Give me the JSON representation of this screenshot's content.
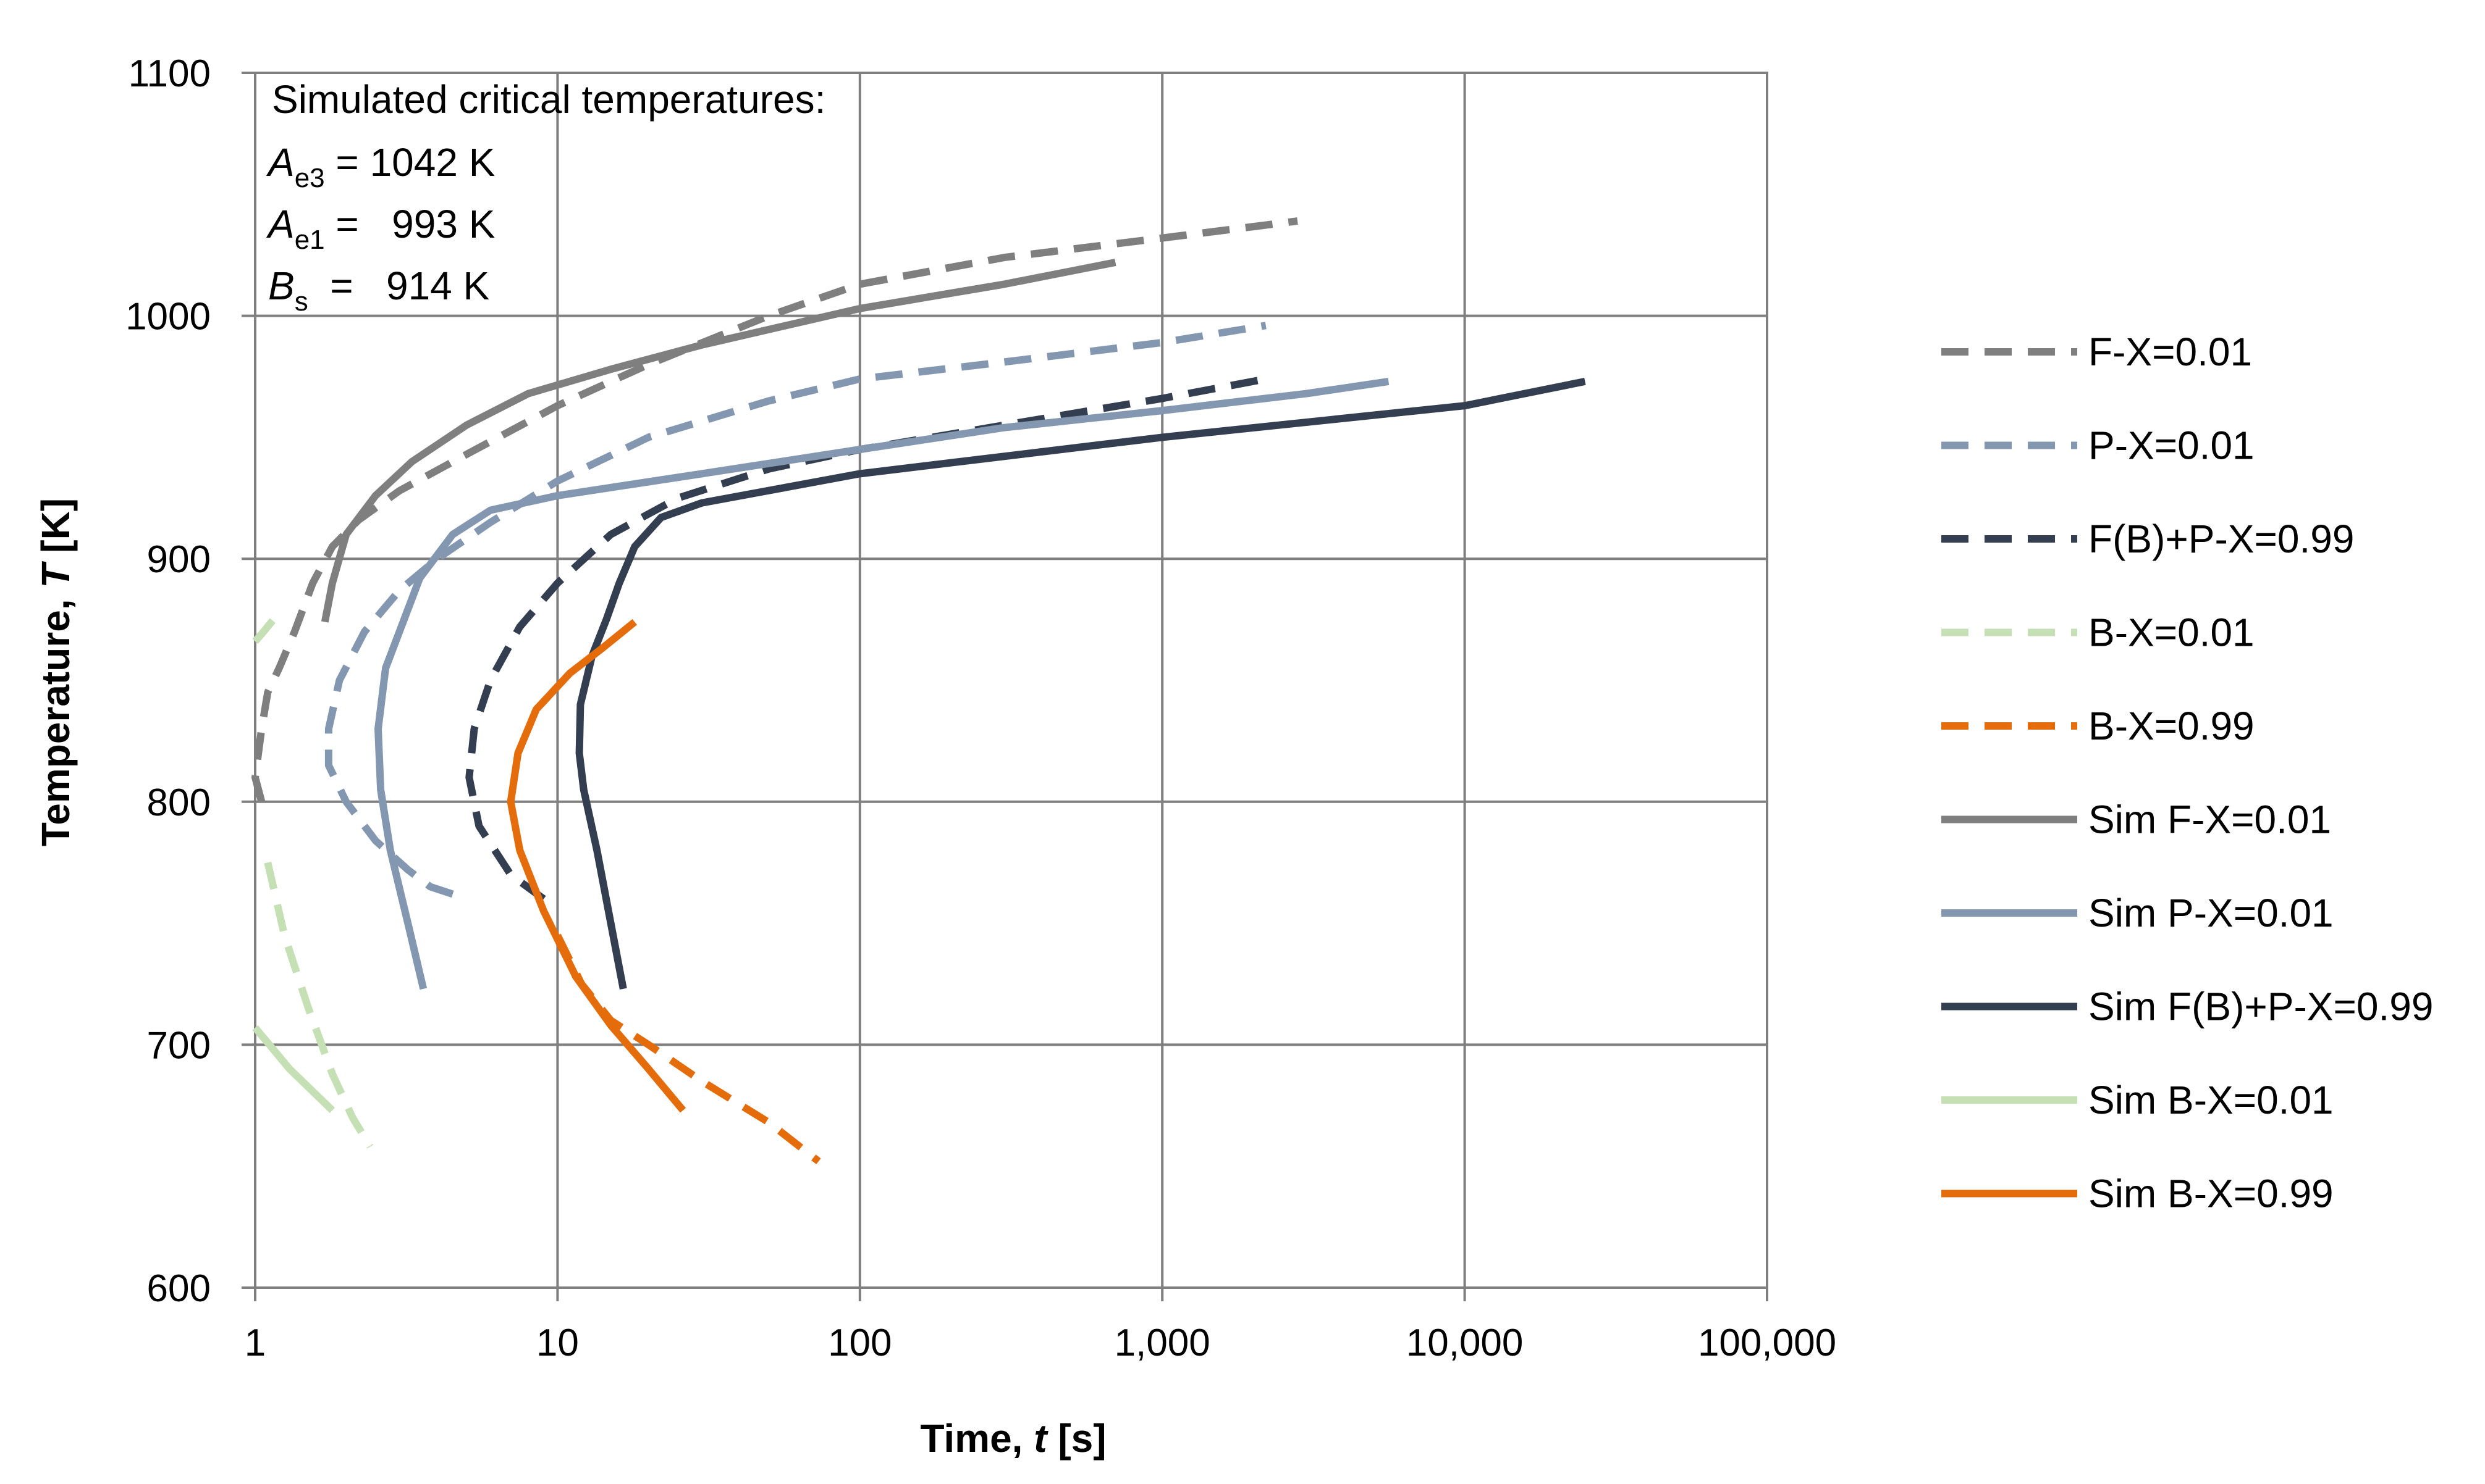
{
  "chart_data": {
    "type": "line",
    "title": "",
    "xlabel": "Time, t [s]",
    "xlabel_parts": [
      "Time, ",
      "t",
      " [s]"
    ],
    "ylabel": "Temperature, T [K]",
    "ylabel_parts": [
      "Temperature, ",
      "T",
      " [K]"
    ],
    "xscale": "log",
    "xlim": [
      1,
      100000
    ],
    "ylim": [
      600,
      1100
    ],
    "xticks": [
      1,
      10,
      100,
      1000,
      10000,
      100000
    ],
    "xtick_labels": [
      "1",
      "10",
      "100",
      "1,000",
      "10,000",
      "100,000"
    ],
    "yticks": [
      600,
      700,
      800,
      900,
      1000,
      1100
    ],
    "ytick_labels": [
      "600",
      "700",
      "800",
      "900",
      "1000",
      "1100"
    ],
    "grid": true,
    "legend_position": "right",
    "annotation": {
      "title": "Simulated critical temperatures:",
      "lines": [
        {
          "symbol": "A",
          "sub": "e3",
          "text": " = 1042 K"
        },
        {
          "symbol": "A",
          "sub": "e1",
          "text": " =   993 K"
        },
        {
          "symbol": "B",
          "sub": "s",
          "text": "  =   914 K"
        }
      ]
    },
    "series": [
      {
        "name": "F-X=0.01",
        "color": "#7f7f7f",
        "dashed": true,
        "points": [
          [
            1.05,
            800
          ],
          [
            1.0,
            810
          ],
          [
            1.05,
            830
          ],
          [
            1.1,
            845
          ],
          [
            1.2,
            855
          ],
          [
            1.35,
            870
          ],
          [
            1.55,
            890
          ],
          [
            1.8,
            905
          ],
          [
            2.2,
            916
          ],
          [
            3,
            928
          ],
          [
            5,
            943
          ],
          [
            10,
            963
          ],
          [
            20,
            980
          ],
          [
            50,
            1000
          ],
          [
            100,
            1013
          ],
          [
            300,
            1024
          ],
          [
            1000,
            1032
          ],
          [
            2800,
            1039
          ]
        ]
      },
      {
        "name": "P-X=0.01",
        "color": "#8497b0",
        "dashed": true,
        "points": [
          [
            4.5,
            762
          ],
          [
            3.8,
            765
          ],
          [
            3.2,
            772
          ],
          [
            2.5,
            784
          ],
          [
            2.0,
            800
          ],
          [
            1.75,
            815
          ],
          [
            1.75,
            830
          ],
          [
            1.9,
            850
          ],
          [
            2.3,
            870
          ],
          [
            3.0,
            887
          ],
          [
            4,
            900
          ],
          [
            6,
            915
          ],
          [
            10,
            932
          ],
          [
            20,
            950
          ],
          [
            50,
            965
          ],
          [
            100,
            974
          ],
          [
            300,
            981
          ],
          [
            1000,
            989
          ],
          [
            2200,
            996
          ]
        ]
      },
      {
        "name": "F(B)+P-X=0.99",
        "color": "#333f50",
        "dashed": true,
        "points": [
          [
            9,
            760
          ],
          [
            7,
            770
          ],
          [
            5.5,
            790
          ],
          [
            5.1,
            810
          ],
          [
            5.3,
            830
          ],
          [
            6,
            850
          ],
          [
            7.5,
            872
          ],
          [
            10,
            890
          ],
          [
            15,
            910
          ],
          [
            25,
            925
          ],
          [
            50,
            937
          ],
          [
            100,
            945
          ],
          [
            300,
            955
          ],
          [
            1000,
            966
          ],
          [
            2200,
            974
          ]
        ]
      },
      {
        "name": "B-X=0.01",
        "color": "#c5e0b4",
        "dashed": true,
        "points": [
          [
            1.0,
            866
          ],
          [
            1.05,
            869
          ],
          [
            1.15,
            875
          ]
        ]
      },
      {
        "name": "B-X=0.01",
        "color": "#c5e0b4",
        "dashed": true,
        "points": [
          [
            1.1,
            775
          ],
          [
            1.25,
            745
          ],
          [
            1.5,
            715
          ],
          [
            1.8,
            688
          ],
          [
            2.1,
            670
          ],
          [
            2.4,
            658
          ]
        ]
      },
      {
        "name": "B-X=0.99",
        "color": "#e46c0a",
        "dashed": true,
        "points": [
          [
            10,
            745
          ],
          [
            12,
            725
          ],
          [
            15,
            710
          ],
          [
            20,
            700
          ],
          [
            30,
            685
          ],
          [
            50,
            668
          ],
          [
            73,
            652
          ]
        ]
      },
      {
        "name": "Sim F-X=0.01",
        "color": "#7f7f7f",
        "dashed": false,
        "points": [
          [
            1.7,
            874
          ],
          [
            1.8,
            890
          ],
          [
            2.0,
            910
          ],
          [
            2.5,
            926
          ],
          [
            3.3,
            940
          ],
          [
            5,
            955
          ],
          [
            8,
            968
          ],
          [
            15,
            978
          ],
          [
            30,
            988
          ],
          [
            100,
            1003
          ],
          [
            300,
            1013
          ],
          [
            700,
            1022
          ]
        ]
      },
      {
        "name": "Sim P-X=0.01",
        "color": "#8497b0",
        "dashed": false,
        "points": [
          [
            3.6,
            723
          ],
          [
            3.2,
            750
          ],
          [
            2.8,
            780
          ],
          [
            2.6,
            805
          ],
          [
            2.55,
            830
          ],
          [
            2.7,
            855
          ],
          [
            3.0,
            870
          ],
          [
            3.5,
            892
          ],
          [
            4.5,
            910
          ],
          [
            6,
            920
          ],
          [
            10,
            926
          ],
          [
            30,
            935
          ],
          [
            100,
            945
          ],
          [
            300,
            954
          ],
          [
            1000,
            961
          ],
          [
            3000,
            968
          ],
          [
            5600,
            973
          ]
        ]
      },
      {
        "name": "Sim F(B)+P-X=0.99",
        "color": "#333f50",
        "dashed": false,
        "points": [
          [
            16.5,
            723
          ],
          [
            15,
            750
          ],
          [
            13.5,
            780
          ],
          [
            12.2,
            805
          ],
          [
            11.8,
            820
          ],
          [
            11.9,
            840
          ],
          [
            13,
            860
          ],
          [
            14.5,
            875
          ],
          [
            16,
            890
          ],
          [
            18,
            905
          ],
          [
            22,
            917
          ],
          [
            30,
            923
          ],
          [
            100,
            935
          ],
          [
            1000,
            950
          ],
          [
            10000,
            963
          ],
          [
            25000,
            973
          ]
        ]
      },
      {
        "name": "Sim B-X=0.01",
        "color": "#c5e0b4",
        "dashed": false,
        "points": [
          [
            1.0,
            707
          ],
          [
            1.3,
            690
          ],
          [
            1.8,
            673
          ]
        ]
      },
      {
        "name": "Sim B-X=0.99",
        "color": "#e46c0a",
        "dashed": false,
        "points": [
          [
            26,
            673
          ],
          [
            20,
            690
          ],
          [
            15,
            708
          ],
          [
            11.5,
            728
          ],
          [
            9,
            755
          ],
          [
            7.5,
            780
          ],
          [
            7,
            800
          ],
          [
            7.4,
            820
          ],
          [
            8.5,
            838
          ],
          [
            11,
            853
          ],
          [
            14,
            863
          ],
          [
            18,
            874
          ]
        ]
      }
    ],
    "legend": [
      {
        "label": "F-X=0.01",
        "color": "#7f7f7f",
        "dashed": true
      },
      {
        "label": "P-X=0.01",
        "color": "#8497b0",
        "dashed": true
      },
      {
        "label": "F(B)+P-X=0.99",
        "color": "#333f50",
        "dashed": true
      },
      {
        "label": "B-X=0.01",
        "color": "#c5e0b4",
        "dashed": true
      },
      {
        "label": "B-X=0.99",
        "color": "#e46c0a",
        "dashed": true
      },
      {
        "label": "Sim F-X=0.01",
        "color": "#7f7f7f",
        "dashed": false
      },
      {
        "label": "Sim P-X=0.01",
        "color": "#8497b0",
        "dashed": false
      },
      {
        "label": "Sim F(B)+P-X=0.99",
        "color": "#333f50",
        "dashed": false
      },
      {
        "label": "Sim B-X=0.01",
        "color": "#c5e0b4",
        "dashed": false
      },
      {
        "label": "Sim B-X=0.99",
        "color": "#e46c0a",
        "dashed": false
      }
    ]
  }
}
